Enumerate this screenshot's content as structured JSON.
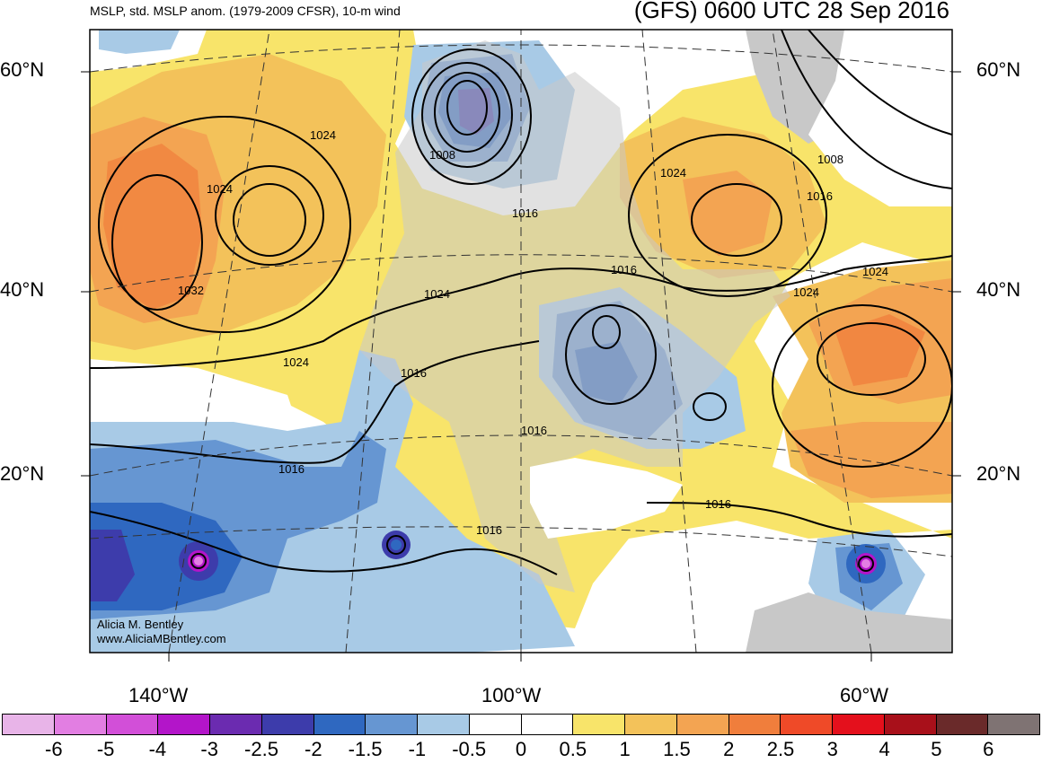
{
  "header": {
    "left_title": "MSLP, std. MSLP anom. (1979-2009 CFSR), 10-m wind",
    "right_title": "(GFS) 0600 UTC 28 Sep 2016"
  },
  "latitude_labels": [
    "60°N",
    "40°N",
    "20°N"
  ],
  "longitude_labels": [
    "140°W",
    "100°W",
    "60°W"
  ],
  "credit": {
    "line1": "Alicia M. Bentley",
    "line2": "www.AliciaMBentley.com"
  },
  "isobar_labels": [
    "1024",
    "1024",
    "1032",
    "1024",
    "1008",
    "1016",
    "1024",
    "1016",
    "1016",
    "1016",
    "1016",
    "1016",
    "1024",
    "1008",
    "1016",
    "1024",
    "1024",
    "1016"
  ],
  "colorbar": {
    "colors": [
      "#e8b4e8",
      "#e27ee2",
      "#d24fd8",
      "#b315c9",
      "#6b2bb0",
      "#3d3cab",
      "#2f68c0",
      "#6696d2",
      "#a8cae6",
      "#ffffff",
      "#ffffff",
      "#f8e46a",
      "#f3c25a",
      "#f3a452",
      "#f07e3c",
      "#ef4a28",
      "#e4101c",
      "#a8101a",
      "#6a2a2a",
      "#7f7373"
    ],
    "labels": [
      "-6",
      "-5",
      "-4",
      "-3",
      "-2.5",
      "-2",
      "-1.5",
      "-1",
      "-0.5",
      "0",
      "0.5",
      "1",
      "1.5",
      "2",
      "2.5",
      "3",
      "4",
      "5",
      "6"
    ]
  }
}
